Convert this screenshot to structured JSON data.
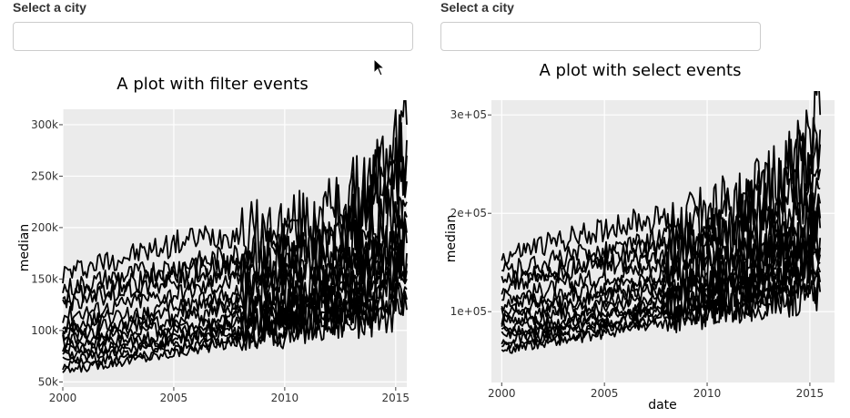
{
  "filter_panel": {
    "label": "Select a city",
    "input_value": "",
    "title": "A plot with filter events",
    "ylabel": "median",
    "xlabel": ""
  },
  "select_panel": {
    "label": "Select a city",
    "input_value": "",
    "title": "A plot with select events",
    "ylabel": "median",
    "xlabel": "date"
  },
  "colors": {
    "line": "#000000",
    "panel_bg": "#ebebeb",
    "grid": "#ffffff"
  },
  "icons": {
    "cursor": "mouse-pointer-icon"
  },
  "chart_data": [
    {
      "type": "line",
      "title": "A plot with filter events",
      "xlabel": "",
      "ylabel": "median",
      "xlim": [
        2000,
        2015.5
      ],
      "ylim": [
        45000,
        315000
      ],
      "x_ticks": [
        2000,
        2005,
        2010,
        2015
      ],
      "x_tick_labels": [
        "2000",
        "2005",
        "2010",
        "2015"
      ],
      "y_ticks": [
        50000,
        100000,
        150000,
        200000,
        250000,
        300000
      ],
      "y_tick_labels": [
        "50k",
        "100k",
        "150k",
        "200k",
        "250k",
        "300k"
      ],
      "grid": true,
      "series_summary": "many overlapping monthly city median price lines, 2000–2015.5",
      "series": [
        {
          "x": [
            2000,
            2002,
            2004,
            2006,
            2008,
            2010,
            2012,
            2014,
            2015.5
          ],
          "values": [
            155000,
            168000,
            178000,
            190000,
            195000,
            200000,
            215000,
            245000,
            300000
          ]
        },
        {
          "x": [
            2000,
            2002,
            2004,
            2006,
            2008,
            2010,
            2012,
            2014,
            2015.5
          ],
          "values": [
            140000,
            150000,
            158000,
            165000,
            175000,
            185000,
            205000,
            235000,
            285000
          ]
        },
        {
          "x": [
            2000,
            2002,
            2004,
            2006,
            2008,
            2010,
            2012,
            2014,
            2015.5
          ],
          "values": [
            130000,
            140000,
            150000,
            160000,
            165000,
            175000,
            190000,
            220000,
            270000
          ]
        },
        {
          "x": [
            2000,
            2002,
            2004,
            2006,
            2008,
            2010,
            2012,
            2014,
            2015.5
          ],
          "values": [
            125000,
            135000,
            145000,
            150000,
            160000,
            170000,
            180000,
            200000,
            245000
          ]
        },
        {
          "x": [
            2000,
            2002,
            2004,
            2006,
            2008,
            2010,
            2012,
            2014,
            2015.5
          ],
          "values": [
            115000,
            122000,
            132000,
            140000,
            150000,
            160000,
            170000,
            190000,
            225000
          ]
        },
        {
          "x": [
            2000,
            2002,
            2004,
            2006,
            2008,
            2010,
            2012,
            2014,
            2015.5
          ],
          "values": [
            105000,
            112000,
            120000,
            128000,
            138000,
            148000,
            158000,
            175000,
            210000
          ]
        },
        {
          "x": [
            2000,
            2002,
            2004,
            2006,
            2008,
            2010,
            2012,
            2014,
            2015.5
          ],
          "values": [
            100000,
            106000,
            112000,
            120000,
            130000,
            140000,
            150000,
            165000,
            195000
          ]
        },
        {
          "x": [
            2000,
            2002,
            2004,
            2006,
            2008,
            2010,
            2012,
            2014,
            2015.5
          ],
          "values": [
            95000,
            100000,
            106000,
            114000,
            124000,
            134000,
            145000,
            158000,
            185000
          ]
        },
        {
          "x": [
            2000,
            2002,
            2004,
            2006,
            2008,
            2010,
            2012,
            2014,
            2015.5
          ],
          "values": [
            90000,
            94000,
            100000,
            108000,
            118000,
            128000,
            138000,
            150000,
            175000
          ]
        },
        {
          "x": [
            2000,
            2002,
            2004,
            2006,
            2008,
            2010,
            2012,
            2014,
            2015.5
          ],
          "values": [
            85000,
            88000,
            94000,
            102000,
            112000,
            122000,
            132000,
            145000,
            165000
          ]
        },
        {
          "x": [
            2000,
            2002,
            2004,
            2006,
            2008,
            2010,
            2012,
            2014,
            2015.5
          ],
          "values": [
            80000,
            84000,
            90000,
            98000,
            106000,
            116000,
            126000,
            138000,
            158000
          ]
        },
        {
          "x": [
            2000,
            2002,
            2004,
            2006,
            2008,
            2010,
            2012,
            2014,
            2015.5
          ],
          "values": [
            75000,
            80000,
            86000,
            94000,
            102000,
            110000,
            120000,
            130000,
            150000
          ]
        },
        {
          "x": [
            2000,
            2002,
            2004,
            2006,
            2008,
            2010,
            2012,
            2014,
            2015.5
          ],
          "values": [
            70000,
            76000,
            82000,
            90000,
            98000,
            106000,
            114000,
            124000,
            140000
          ]
        },
        {
          "x": [
            2000,
            2002,
            2004,
            2006,
            2008,
            2010,
            2012,
            2014,
            2015.5
          ],
          "values": [
            65000,
            72000,
            78000,
            86000,
            94000,
            102000,
            110000,
            118000,
            130000
          ]
        },
        {
          "x": [
            2000,
            2002,
            2004,
            2006,
            2008,
            2010,
            2012,
            2014,
            2015.5
          ],
          "values": [
            60000,
            68000,
            74000,
            82000,
            90000,
            98000,
            106000,
            112000,
            120000
          ]
        }
      ]
    },
    {
      "type": "line",
      "title": "A plot with select events",
      "xlabel": "date",
      "ylabel": "median",
      "xlim": [
        1999.5,
        2016.2
      ],
      "ylim": [
        28000,
        315000
      ],
      "x_ticks": [
        2000,
        2005,
        2010,
        2015
      ],
      "x_tick_labels": [
        "2000",
        "2005",
        "2010",
        "2015"
      ],
      "y_ticks": [
        100000,
        200000,
        300000
      ],
      "y_tick_labels": [
        "1e+05",
        "2e+05",
        "3e+05"
      ],
      "grid": true,
      "series_summary": "many overlapping monthly city median price lines, 2000–2015.5",
      "series": [
        {
          "x": [
            2000,
            2002,
            2004,
            2006,
            2008,
            2010,
            2012,
            2014,
            2015.5
          ],
          "values": [
            155000,
            168000,
            178000,
            190000,
            195000,
            200000,
            215000,
            245000,
            300000
          ]
        },
        {
          "x": [
            2000,
            2002,
            2004,
            2006,
            2008,
            2010,
            2012,
            2014,
            2015.5
          ],
          "values": [
            140000,
            150000,
            158000,
            165000,
            175000,
            185000,
            205000,
            235000,
            285000
          ]
        },
        {
          "x": [
            2000,
            2002,
            2004,
            2006,
            2008,
            2010,
            2012,
            2014,
            2015.5
          ],
          "values": [
            130000,
            140000,
            150000,
            160000,
            165000,
            175000,
            190000,
            220000,
            270000
          ]
        },
        {
          "x": [
            2000,
            2002,
            2004,
            2006,
            2008,
            2010,
            2012,
            2014,
            2015.5
          ],
          "values": [
            125000,
            135000,
            145000,
            150000,
            160000,
            170000,
            180000,
            200000,
            245000
          ]
        },
        {
          "x": [
            2000,
            2002,
            2004,
            2006,
            2008,
            2010,
            2012,
            2014,
            2015.5
          ],
          "values": [
            115000,
            122000,
            132000,
            140000,
            150000,
            160000,
            170000,
            190000,
            225000
          ]
        },
        {
          "x": [
            2000,
            2002,
            2004,
            2006,
            2008,
            2010,
            2012,
            2014,
            2015.5
          ],
          "values": [
            105000,
            112000,
            120000,
            128000,
            138000,
            148000,
            158000,
            175000,
            210000
          ]
        },
        {
          "x": [
            2000,
            2002,
            2004,
            2006,
            2008,
            2010,
            2012,
            2014,
            2015.5
          ],
          "values": [
            100000,
            106000,
            112000,
            120000,
            130000,
            140000,
            150000,
            165000,
            195000
          ]
        },
        {
          "x": [
            2000,
            2002,
            2004,
            2006,
            2008,
            2010,
            2012,
            2014,
            2015.5
          ],
          "values": [
            95000,
            100000,
            106000,
            114000,
            124000,
            134000,
            145000,
            158000,
            185000
          ]
        },
        {
          "x": [
            2000,
            2002,
            2004,
            2006,
            2008,
            2010,
            2012,
            2014,
            2015.5
          ],
          "values": [
            90000,
            94000,
            100000,
            108000,
            118000,
            128000,
            138000,
            150000,
            175000
          ]
        },
        {
          "x": [
            2000,
            2002,
            2004,
            2006,
            2008,
            2010,
            2012,
            2014,
            2015.5
          ],
          "values": [
            85000,
            88000,
            94000,
            102000,
            112000,
            122000,
            132000,
            145000,
            165000
          ]
        },
        {
          "x": [
            2000,
            2002,
            2004,
            2006,
            2008,
            2010,
            2012,
            2014,
            2015.5
          ],
          "values": [
            80000,
            84000,
            90000,
            98000,
            106000,
            116000,
            126000,
            138000,
            158000
          ]
        },
        {
          "x": [
            2000,
            2002,
            2004,
            2006,
            2008,
            2010,
            2012,
            2014,
            2015.5
          ],
          "values": [
            75000,
            80000,
            86000,
            94000,
            102000,
            110000,
            120000,
            130000,
            150000
          ]
        },
        {
          "x": [
            2000,
            2002,
            2004,
            2006,
            2008,
            2010,
            2012,
            2014,
            2015.5
          ],
          "values": [
            70000,
            76000,
            82000,
            90000,
            98000,
            106000,
            114000,
            124000,
            140000
          ]
        },
        {
          "x": [
            2000,
            2002,
            2004,
            2006,
            2008,
            2010,
            2012,
            2014,
            2015.5
          ],
          "values": [
            65000,
            72000,
            78000,
            86000,
            94000,
            102000,
            110000,
            118000,
            130000
          ]
        },
        {
          "x": [
            2000,
            2002,
            2004,
            2006,
            2008,
            2010,
            2012,
            2014,
            2015.5
          ],
          "values": [
            60000,
            68000,
            74000,
            82000,
            90000,
            98000,
            106000,
            112000,
            120000
          ]
        }
      ]
    }
  ]
}
